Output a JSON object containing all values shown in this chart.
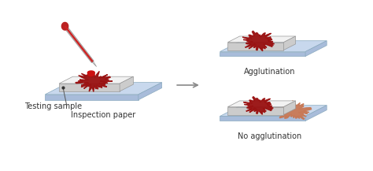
{
  "bg_color": "#ffffff",
  "blue_plate_top": "#c8d8ed",
  "blue_plate_side": "#a8bcda",
  "blue_plate_edge": "#8aaabf",
  "paper_top": "#f2f2f2",
  "paper_side": "#cccccc",
  "paper_edge": "#999999",
  "blood_dark": "#991010",
  "blood_agglut": "#991010",
  "blood_no_agglut": "#c87855",
  "drop_red": "#cc1111",
  "dropper_glass": "#e0e0e0",
  "dropper_red_fill": "#cc2222",
  "dropper_red_bulb": "#bb2222",
  "dropper_tip": "#dddddd",
  "arrow_color": "#888888",
  "text_color": "#333333",
  "label_testing": "Testing sample",
  "label_inspection": "Inspection paper",
  "label_agglut": "Agglutination",
  "label_no_agglut": "No agglutination",
  "font_size": 7.0
}
